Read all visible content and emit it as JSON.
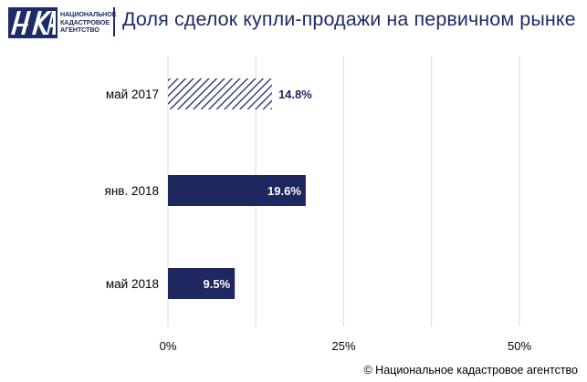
{
  "header": {
    "logo_lines": [
      "НАЦИОНАЛЬНОЕ",
      "КАДАСТРОВОЕ",
      "АГЕНТСТВО"
    ],
    "title": "Доля сделок купли-продажи на первичном рынке"
  },
  "colors": {
    "brand": "#1d2b66",
    "bar": "#1e2760",
    "label_dark": "#1e2760",
    "grid": "#d9d9d9"
  },
  "chart_data": {
    "type": "bar",
    "orientation": "horizontal",
    "categories": [
      "май 2017",
      "янв. 2018",
      "май 2018"
    ],
    "values": [
      14.8,
      19.6,
      9.5
    ],
    "value_labels": [
      "14.8%",
      "19.6%",
      "9.5%"
    ],
    "bar_styles": [
      "hatched",
      "solid",
      "solid"
    ],
    "xlim": [
      0,
      50
    ],
    "x_ticks": [
      0,
      25,
      50
    ],
    "x_tick_labels": [
      "0%",
      "25%",
      "50%"
    ],
    "grid": true,
    "title": "Доля сделок купли-продажи на первичном рынке"
  },
  "footer": {
    "copyright": "© Национальное кадастровое агентство"
  }
}
